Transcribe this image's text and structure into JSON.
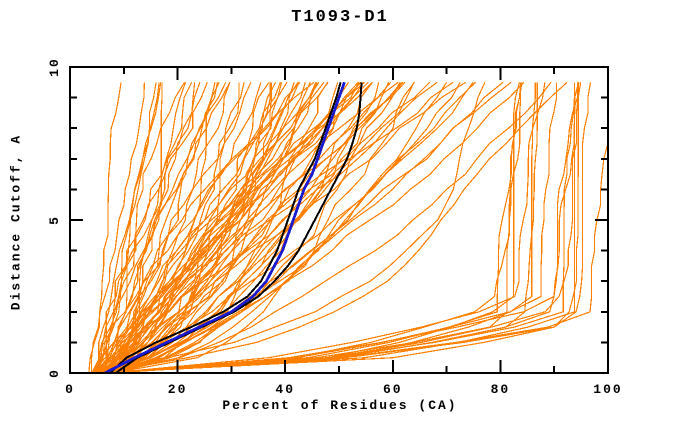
{
  "title": "T1093-D1",
  "chart_data": {
    "type": "line",
    "title": "T1093-D1",
    "xlabel": "Percent of Residues (CA)",
    "ylabel": "Distance Cutoff, A",
    "xlim": [
      0,
      100
    ],
    "ylim": [
      0,
      10
    ],
    "x_major_ticks": [
      0,
      20,
      40,
      60,
      80,
      100
    ],
    "x_minor_ticks": [
      10,
      30,
      50,
      70,
      90
    ],
    "y_major_ticks": [
      0,
      5,
      10
    ],
    "y_minor_ticks": [
      1,
      2,
      3,
      4,
      6,
      7,
      8,
      9
    ],
    "grid": "off",
    "legend": "none",
    "cutoff_max_plotted": 9.5,
    "cutoff_step": 0.5,
    "colors": {
      "model": "#ff8000",
      "best_model": "#1a1ad0",
      "reference": "#000000",
      "axes": "#000000",
      "background": "#ffffff"
    },
    "highlight_series": [
      {
        "name": "blue-model",
        "color_key": "best_model",
        "stroke_width": 2.8,
        "points": [
          [
            0,
            6.5
          ],
          [
            0.5,
            12
          ],
          [
            1,
            18
          ],
          [
            1.5,
            24
          ],
          [
            2,
            30
          ],
          [
            2.5,
            34
          ],
          [
            3,
            36.5
          ],
          [
            3.5,
            38
          ],
          [
            4,
            39.5
          ],
          [
            4.5,
            40.5
          ],
          [
            5,
            41.5
          ],
          [
            5.5,
            42.5
          ],
          [
            6,
            43.5
          ],
          [
            6.5,
            45
          ],
          [
            7,
            46
          ],
          [
            7.5,
            47
          ],
          [
            8,
            48
          ],
          [
            8.5,
            49
          ],
          [
            9,
            50
          ],
          [
            9.5,
            51
          ]
        ]
      },
      {
        "name": "black-model-1",
        "color_key": "reference",
        "stroke_width": 2,
        "points": [
          [
            0,
            7.5
          ],
          [
            0.5,
            10.5
          ],
          [
            1,
            16
          ],
          [
            1.5,
            22.5
          ],
          [
            2,
            28.5
          ],
          [
            2.5,
            33
          ],
          [
            3,
            35.5
          ],
          [
            3.5,
            37
          ],
          [
            4,
            38.5
          ],
          [
            4.5,
            39.5
          ],
          [
            5,
            40.5
          ],
          [
            5.5,
            41.5
          ],
          [
            6,
            42.5
          ],
          [
            6.5,
            44
          ],
          [
            7,
            45.5
          ],
          [
            7.5,
            46.5
          ],
          [
            8,
            47.5
          ],
          [
            8.5,
            48.5
          ],
          [
            9,
            49.5
          ],
          [
            9.5,
            50.3
          ]
        ]
      },
      {
        "name": "black-model-2",
        "color_key": "reference",
        "stroke_width": 2,
        "points": [
          [
            0,
            8.5
          ],
          [
            0.5,
            12.5
          ],
          [
            1,
            18.5
          ],
          [
            1.5,
            24.5
          ],
          [
            2,
            30.5
          ],
          [
            2.5,
            35
          ],
          [
            3,
            38
          ],
          [
            3.5,
            40.5
          ],
          [
            4,
            42.5
          ],
          [
            4.5,
            44
          ],
          [
            5,
            45.5
          ],
          [
            5.5,
            47
          ],
          [
            6,
            48.5
          ],
          [
            6.5,
            50
          ],
          [
            7,
            51.5
          ],
          [
            7.5,
            52.5
          ],
          [
            8,
            53.3
          ],
          [
            8.5,
            53.8
          ],
          [
            9,
            54
          ],
          [
            9.5,
            54.2
          ]
        ]
      }
    ],
    "orange_model_curves": {
      "jitter_seed": 20230911,
      "families": [
        {
          "name": "left-steep-bundle",
          "top_percents": [
            11.5,
            13,
            14,
            15.5,
            17,
            21
          ],
          "start_percents": [
            3.5,
            4,
            4.5,
            5,
            5.5,
            6
          ],
          "gammas": [
            0.9,
            1.05,
            0.8,
            1.15,
            0.95,
            1.0
          ],
          "noise": 1.0
        },
        {
          "name": "central-mass",
          "count": 64,
          "top_range": [
            22,
            72
          ],
          "gamma_range": [
            0.42,
            1.2
          ],
          "start_range": [
            4,
            8.5
          ],
          "noise": 2.4
        },
        {
          "name": "right-sparse",
          "top_percents": [
            74,
            78,
            82,
            86,
            93
          ],
          "gamma_range": [
            0.5,
            0.8
          ],
          "start_range": [
            5,
            8
          ],
          "noise": 2.0
        },
        {
          "name": "bottom-right-knee-band",
          "count": 16,
          "knee_range": [
            78,
            97
          ],
          "start_range": [
            5,
            8
          ],
          "top_extra_range": [
            2,
            5
          ],
          "knee_cutoff_range": [
            1.6,
            2.4
          ],
          "sharpness_range": [
            0.38,
            0.63
          ],
          "noise": 1.3
        }
      ],
      "extra_curves": [
        [
          [
            0,
            6
          ],
          [
            0.5,
            22
          ],
          [
            1,
            35
          ],
          [
            1.5,
            43
          ],
          [
            2,
            50
          ],
          [
            3,
            60
          ],
          [
            4,
            66
          ],
          [
            5,
            70
          ],
          [
            6,
            74
          ],
          [
            7,
            79
          ],
          [
            8,
            85
          ],
          [
            9,
            91
          ],
          [
            9.5,
            94
          ]
        ],
        [
          [
            0,
            6
          ],
          [
            0.5,
            18
          ],
          [
            1,
            30
          ],
          [
            2,
            45
          ],
          [
            3,
            55
          ],
          [
            4,
            62
          ],
          [
            5,
            67
          ],
          [
            6,
            70
          ],
          [
            7,
            72
          ],
          [
            8,
            74
          ],
          [
            9,
            76
          ],
          [
            9.5,
            77
          ]
        ]
      ]
    }
  }
}
